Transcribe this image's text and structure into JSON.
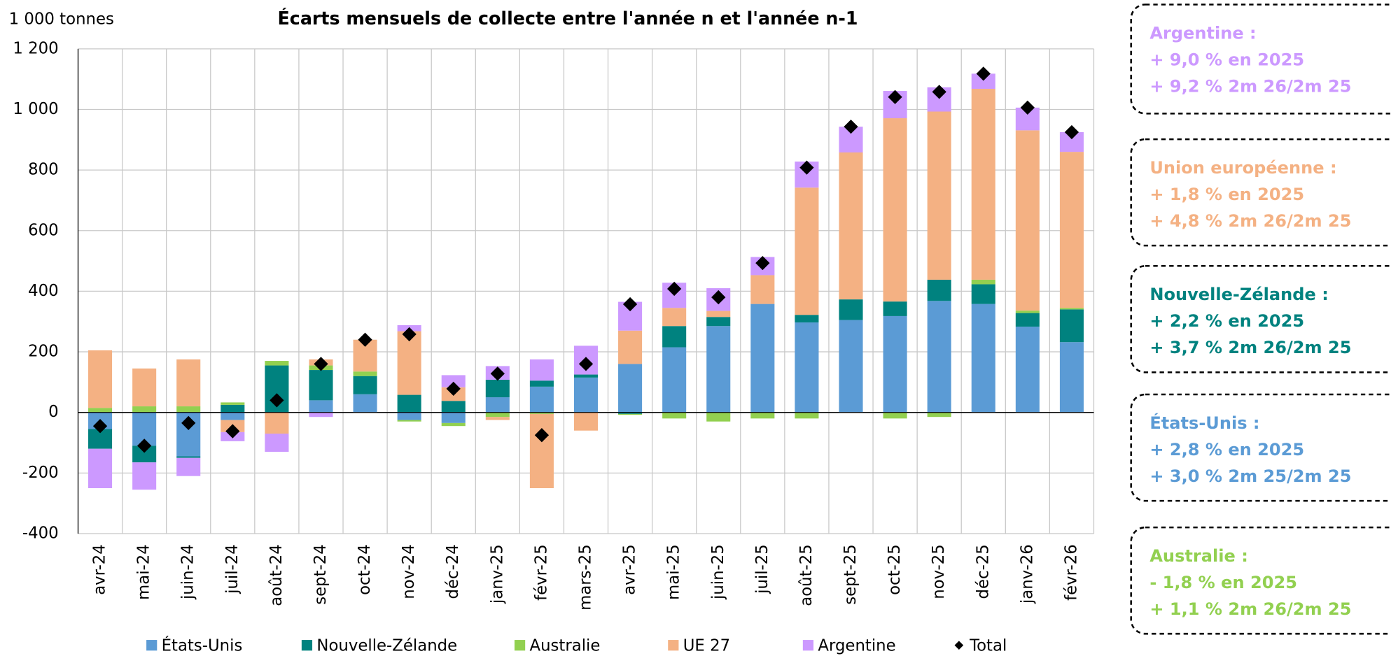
{
  "chart_data": {
    "type": "stacked-bar",
    "title": "Écarts mensuels de collecte entre l'année n et l'année n-1",
    "y_label": "1 000 tonnes",
    "categories": [
      "avr-24",
      "mai-24",
      "juin-24",
      "juil-24",
      "août-24",
      "sept-24",
      "oct-24",
      "nov-24",
      "déc-24",
      "janv-25",
      "févr-25",
      "mars-25",
      "avr-25",
      "mai-25",
      "juin-25",
      "juil-25",
      "août-25",
      "sept-25",
      "oct-25",
      "nov-25",
      "déc-25",
      "janv-26",
      "févr-26"
    ],
    "series": [
      {
        "name": "États-Unis",
        "color": "#5b9bd5",
        "values": [
          -55,
          -110,
          -145,
          -25,
          0,
          40,
          60,
          -25,
          -35,
          50,
          85,
          115,
          160,
          215,
          285,
          358,
          297,
          305,
          318,
          368,
          358,
          283,
          232
        ]
      },
      {
        "name": "Nouvelle-Zélande",
        "color": "#00827f",
        "values": [
          -65,
          -55,
          -5,
          25,
          155,
          100,
          60,
          58,
          38,
          58,
          20,
          10,
          -5,
          70,
          30,
          0,
          25,
          68,
          48,
          70,
          65,
          45,
          108
        ]
      },
      {
        "name": "Australie",
        "color": "#92d050",
        "values": [
          15,
          20,
          20,
          8,
          15,
          15,
          15,
          -5,
          -10,
          -15,
          -5,
          0,
          -3,
          -20,
          -30,
          -20,
          -20,
          0,
          -20,
          -15,
          15,
          8,
          5
        ]
      },
      {
        "name": "UE 27",
        "color": "#f4b183",
        "values": [
          190,
          125,
          155,
          -40,
          -70,
          20,
          105,
          210,
          45,
          -10,
          -245,
          -60,
          110,
          60,
          20,
          95,
          420,
          485,
          605,
          555,
          630,
          595,
          515
        ]
      },
      {
        "name": "Argentine",
        "color": "#cc99ff",
        "values": [
          -130,
          -90,
          -60,
          -30,
          -60,
          -15,
          0,
          20,
          40,
          45,
          70,
          95,
          95,
          83,
          75,
          60,
          86,
          85,
          90,
          80,
          50,
          75,
          65
        ]
      }
    ],
    "total": {
      "name": "Total",
      "color": "#000000",
      "values": [
        -45,
        -110,
        -35,
        -62,
        40,
        160,
        240,
        258,
        78,
        128,
        -75,
        160,
        357,
        408,
        380,
        493,
        808,
        943,
        1041,
        1058,
        1118,
        1006,
        925
      ]
    },
    "ylim": [
      -400,
      1200
    ],
    "yticks": [
      -400,
      -200,
      0,
      200,
      400,
      600,
      800,
      {
        "value": 1000,
        "label": "1 000"
      },
      {
        "value": 1200,
        "label": "1 200"
      }
    ],
    "grid": true,
    "notes": [
      {
        "color": "#cc99ff",
        "lines": [
          "Argentine :",
          "+ 9,0 % en 2025",
          "+ 9,2 % 2m 26/2m 25"
        ]
      },
      {
        "color": "#f4b183",
        "lines": [
          "Union européenne :",
          "+ 1,8 % en 2025",
          "+ 4,8 % 2m 26/2m 25"
        ]
      },
      {
        "color": "#00827f",
        "lines": [
          "Nouvelle-Zélande :",
          "+ 2,2 % en 2025",
          "+ 3,7 % 2m 26/2m 25"
        ]
      },
      {
        "color": "#5b9bd5",
        "lines": [
          "États-Unis :",
          "+ 2,8 % en 2025",
          "+ 3,0 % 2m 25/2m 25"
        ]
      },
      {
        "color": "#92d050",
        "lines": [
          "Australie :",
          "- 1,8 % en 2025",
          "+ 1,1 % 2m 26/2m 25"
        ]
      }
    ]
  }
}
